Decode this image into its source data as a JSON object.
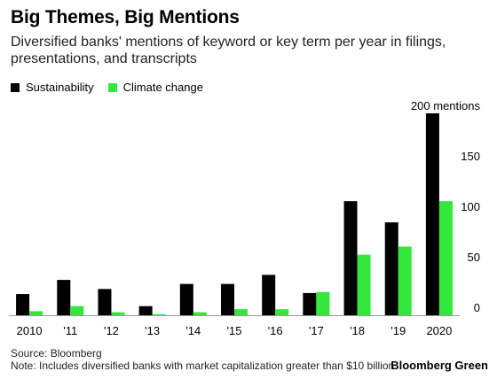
{
  "title": "Big Themes, Big Mentions",
  "subtitle": "Diversified banks' mentions of keyword or key term per year in filings, presentations, and transcripts",
  "source": "Source: Bloomberg",
  "note": "Note: Includes diversified banks with market capitalization greater than $10 billion",
  "brand": "Bloomberg Green",
  "colors": {
    "sustainability": "#000000",
    "climate": "#33e83a",
    "axis": "#999999",
    "grid": "#cccccc"
  },
  "chart_data": {
    "type": "bar",
    "categories": [
      "2010",
      "'11",
      "'12",
      "'13",
      "'14",
      "'15",
      "'16",
      "'17",
      "'18",
      "'19",
      "2020"
    ],
    "series": [
      {
        "name": "Sustainability",
        "values": [
          21,
          35,
          26,
          9,
          31,
          31,
          40,
          22,
          113,
          92,
          200
        ]
      },
      {
        "name": "Climate change",
        "values": [
          4,
          9,
          3,
          1,
          3,
          6,
          6,
          23,
          60,
          68,
          113
        ]
      }
    ],
    "yticks": [
      "0",
      "50",
      "100",
      "150",
      "200 mentions"
    ],
    "ylim": [
      0,
      200
    ],
    "grid": false,
    "legend": "top-left",
    "xlabel": "",
    "ylabel": ""
  }
}
